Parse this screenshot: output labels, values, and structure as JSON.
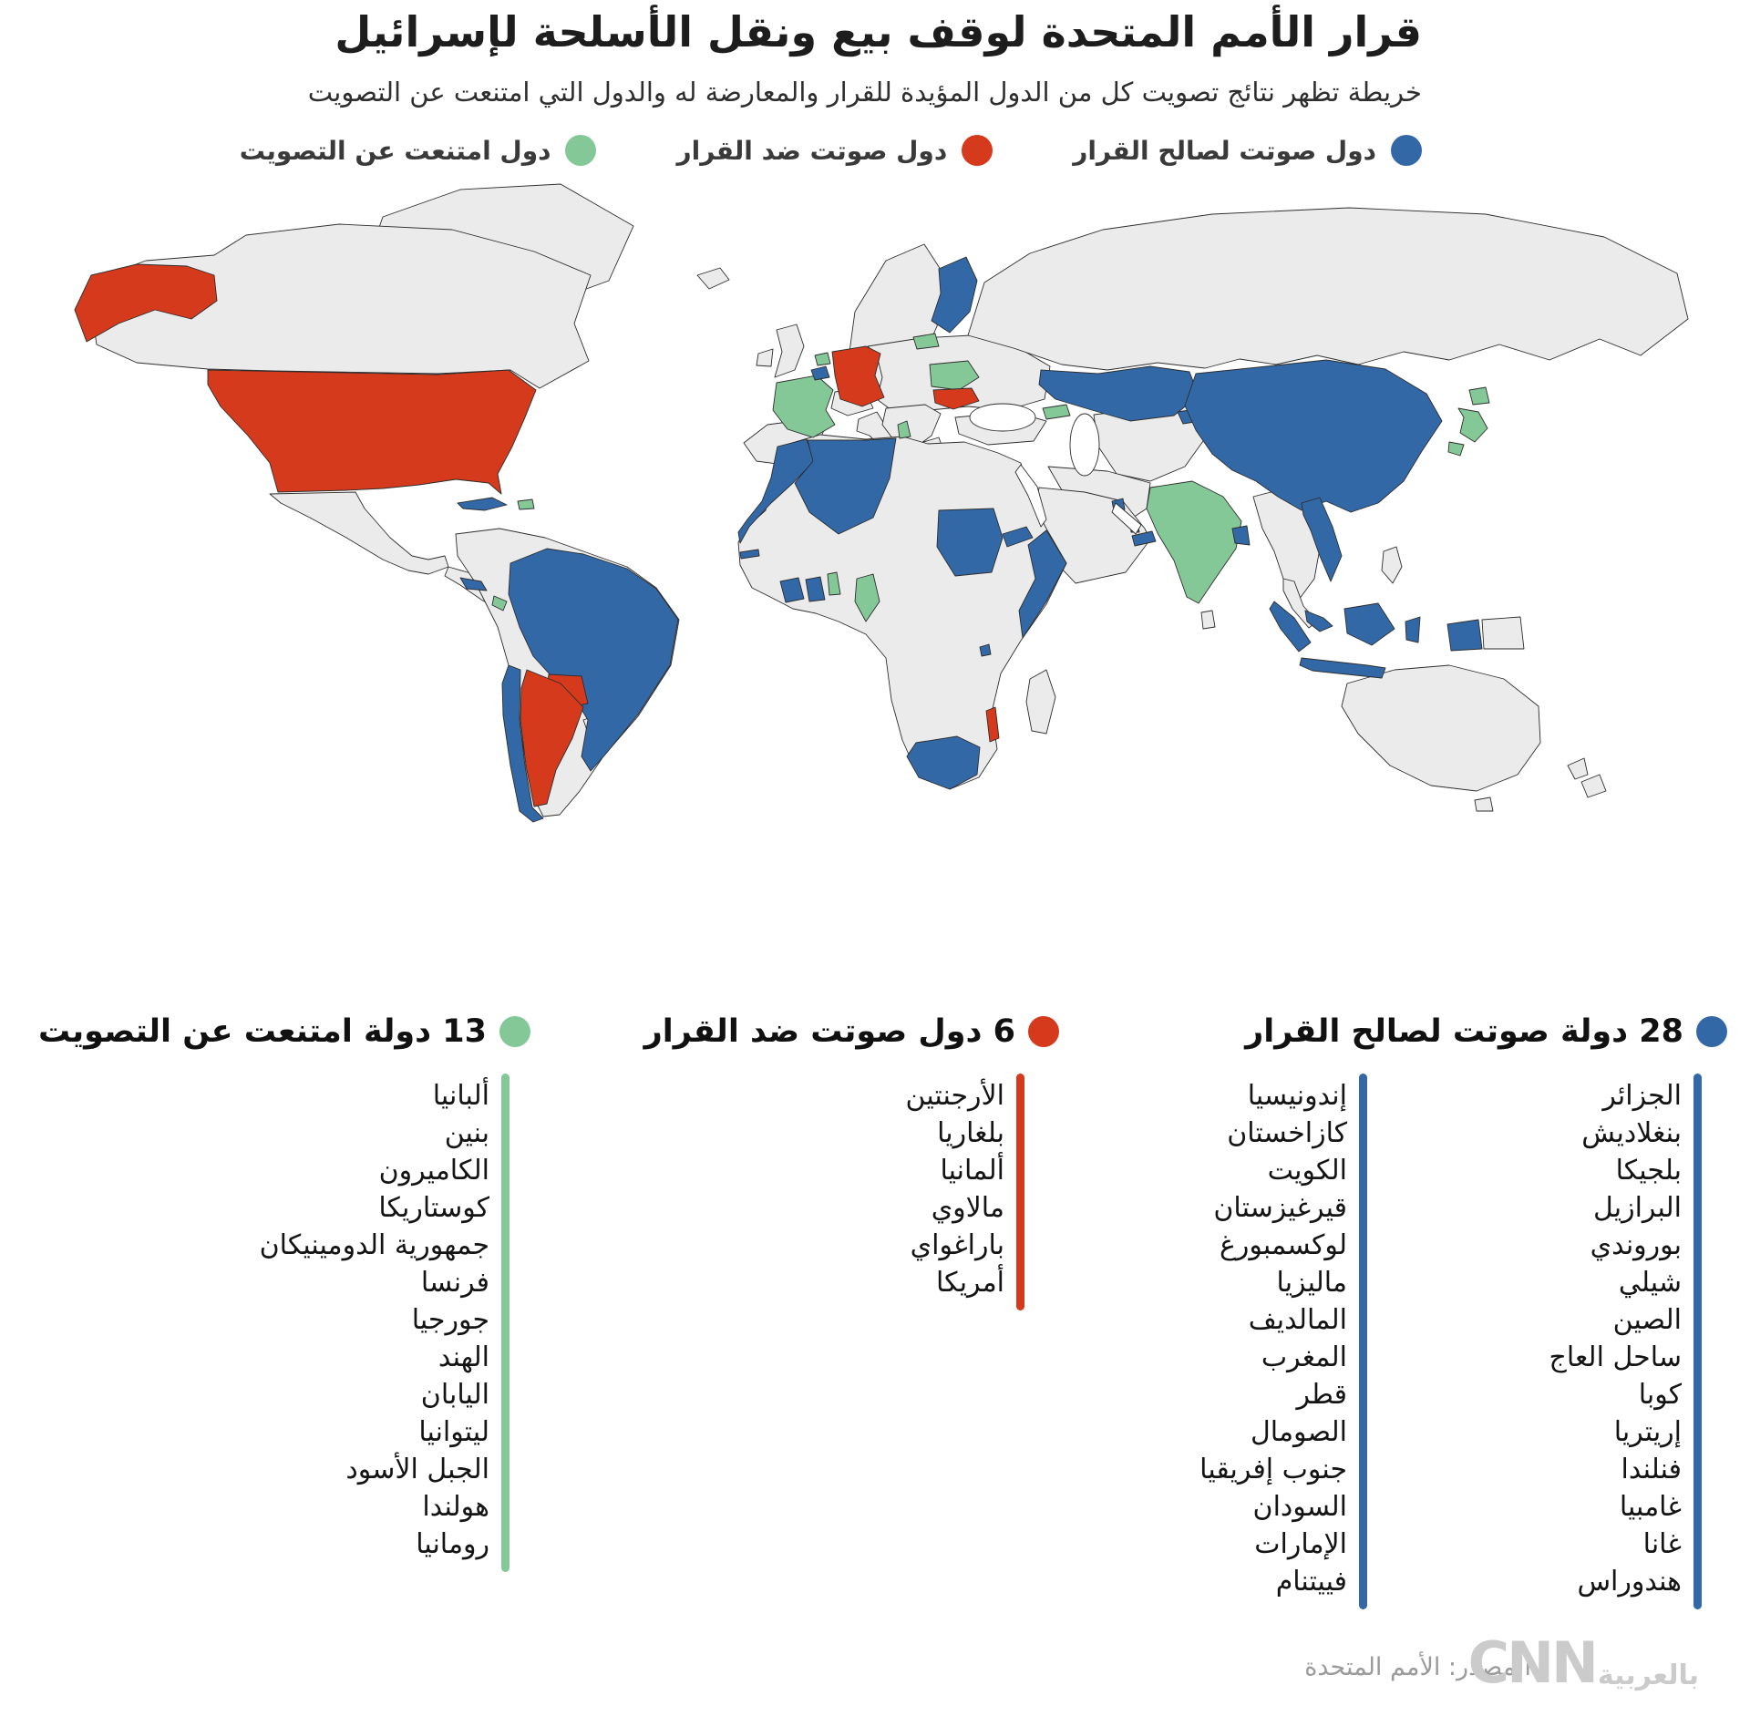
{
  "title": "قرار الأمم المتحدة لوقف بيع ونقل الأسلحة لإسرائيل",
  "subtitle": "خريطة تظهر نتائج تصويت كل من الدول المؤيدة للقرار والمعارضة له والدول التي امتنعت عن التصويت",
  "colors": {
    "for": "#3368a7",
    "against": "#d43a1b",
    "abstain": "#84c898",
    "land": "#ebebeb",
    "border": "#2d2d2d"
  },
  "legend": {
    "for": "دول صوتت لصالح القرار",
    "against": "دول صوتت ضد القرار",
    "abstain": "دول امتنعت عن التصويت"
  },
  "lists": {
    "for": {
      "heading": "28 دولة صوتت لصالح القرار",
      "col1": [
        "الجزائر",
        "بنغلاديش",
        "بلجيكا",
        "البرازيل",
        "بوروندي",
        "شيلي",
        "الصين",
        "ساحل العاج",
        "كوبا",
        "إريتريا",
        "فنلندا",
        "غامبيا",
        "غانا",
        "هندوراس"
      ],
      "col2": [
        "إندونيسيا",
        "كازاخستان",
        "الكويت",
        "قيرغيزستان",
        "لوكسمبورغ",
        "ماليزيا",
        "المالديف",
        "المغرب",
        "قطر",
        "الصومال",
        "جنوب إفريقيا",
        "السودان",
        "الإمارات",
        "فييتنام"
      ]
    },
    "against": {
      "heading": "6 دول صوتت ضد القرار",
      "items": [
        "الأرجنتين",
        "بلغاريا",
        "ألمانيا",
        "مالاوي",
        "باراغواي",
        "أمريكا"
      ]
    },
    "abstain": {
      "heading": "13 دولة امتنعت عن التصويت",
      "items": [
        "ألبانيا",
        "بنين",
        "الكاميرون",
        "كوستاريكا",
        "جمهورية الدومينيكان",
        "فرنسا",
        "جورجيا",
        "الهند",
        "اليابان",
        "ليتوانيا",
        "الجبل الأسود",
        "هولندا",
        "رومانيا"
      ]
    }
  },
  "map": {
    "votes": {
      "alaska": "against",
      "usa": "against",
      "argentina": "against",
      "paraguay": "against",
      "germany": "against",
      "bulgaria": "against",
      "malawi": "against",
      "cuba": "for",
      "honduras": "for",
      "brazil": "for",
      "chile": "for",
      "belgium": "for",
      "finland": "for",
      "morocco": "for",
      "algeria": "for",
      "gambia": "for",
      "cote-divoire": "for",
      "ghana": "for",
      "sudan": "for",
      "eritrea": "for",
      "somalia": "for",
      "burundi": "for",
      "south-africa": "for",
      "kuwait": "for",
      "qatar": "for",
      "uae": "for",
      "kazakhstan": "for",
      "kyrgyzstan": "for",
      "china": "for",
      "bangladesh": "for",
      "vietnam": "for",
      "malaysia": "for",
      "sumatra": "for",
      "borneo": "for",
      "java": "for",
      "sulawesi": "for",
      "papua-west": "for",
      "dominican-republic": "abstain",
      "costa-rica": "abstain",
      "france": "abstain",
      "netherlands": "abstain",
      "lithuania": "abstain",
      "romania": "abstain",
      "albania": "abstain",
      "georgia": "abstain",
      "india": "abstain",
      "benin": "abstain",
      "cameroon": "abstain",
      "japan-hokkaido": "abstain",
      "japan-honshu": "abstain",
      "japan-kyushu": "abstain"
    }
  },
  "footer": {
    "source": "المصدر: الأمم المتحدة",
    "logo_ar": "بالعربية",
    "logo_en": "CNN"
  }
}
